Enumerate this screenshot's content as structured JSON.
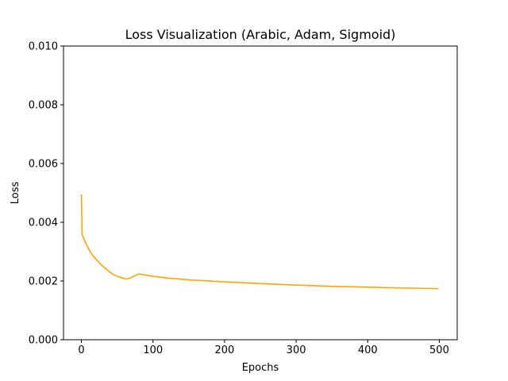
{
  "chart_data": {
    "type": "line",
    "title": "Loss Visualization (Arabic, Adam, Sigmoid)",
    "xlabel": "Epochs",
    "ylabel": "Loss",
    "xlim": [
      -25,
      525
    ],
    "ylim": [
      0,
      0.01
    ],
    "x_ticks": [
      0,
      100,
      200,
      300,
      400,
      500
    ],
    "x_tick_labels": [
      "0",
      "100",
      "200",
      "300",
      "400",
      "500"
    ],
    "y_ticks": [
      0,
      0.002,
      0.004,
      0.006,
      0.008,
      0.01
    ],
    "y_tick_labels": [
      "0.000",
      "0.002",
      "0.004",
      "0.006",
      "0.008",
      "0.010"
    ],
    "grid": false,
    "legend": "none",
    "series": [
      {
        "color": "#ffa500",
        "x": [
          0,
          1,
          2,
          5,
          10,
          15,
          20,
          25,
          30,
          35,
          40,
          45,
          50,
          55,
          60,
          63,
          66,
          70,
          75,
          80,
          90,
          100,
          120,
          150,
          200,
          250,
          300,
          350,
          400,
          450,
          499
        ],
        "y": [
          0.00495,
          0.0036,
          0.00352,
          0.00335,
          0.0031,
          0.0029,
          0.00275,
          0.00262,
          0.0025,
          0.0024,
          0.0023,
          0.00222,
          0.00216,
          0.00212,
          0.00208,
          0.00207,
          0.00208,
          0.00212,
          0.00218,
          0.00224,
          0.0022,
          0.00216,
          0.0021,
          0.00204,
          0.00197,
          0.00191,
          0.00186,
          0.00182,
          0.00179,
          0.00176,
          0.00174
        ]
      }
    ]
  }
}
